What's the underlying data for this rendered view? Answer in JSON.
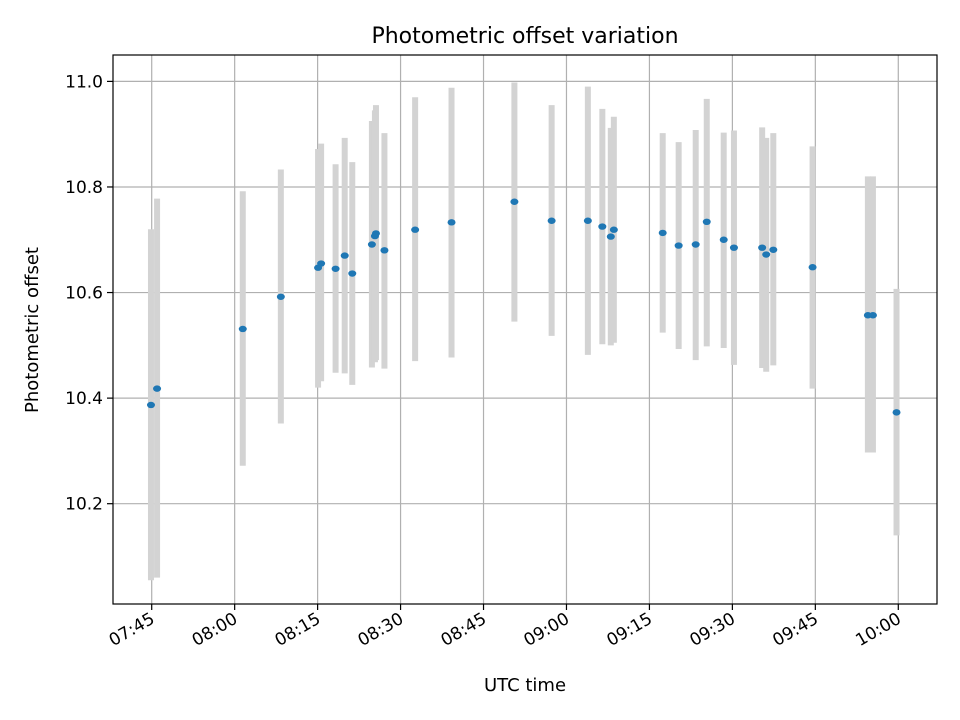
{
  "chart_data": {
    "type": "scatter",
    "title": "Photometric offset variation",
    "xlabel": "UTC time",
    "ylabel": "Photometric offset",
    "x_unit": "UTC time (HH:MM)",
    "xlim": [
      "07:38",
      "10:07"
    ],
    "ylim": [
      10.01,
      11.05
    ],
    "xticks": [
      "07:45",
      "08:00",
      "08:15",
      "08:30",
      "08:45",
      "09:00",
      "09:15",
      "09:30",
      "09:45",
      "10:00"
    ],
    "yticks": [
      10.2,
      10.4,
      10.6,
      10.8,
      11.0
    ],
    "ytick_labels": [
      "10.2",
      "10.4",
      "10.6",
      "10.8",
      "11.0"
    ],
    "grid": true,
    "point_color": "#1f77b4",
    "errorbar_color": "#d3d3d3",
    "points": [
      {
        "t": "07:44:52",
        "y": 10.387,
        "ylo": 10.055,
        "yhi": 10.72
      },
      {
        "t": "07:45:58",
        "y": 10.418,
        "ylo": 10.06,
        "yhi": 10.778
      },
      {
        "t": "08:01:28",
        "y": 10.531,
        "ylo": 10.272,
        "yhi": 10.792
      },
      {
        "t": "08:08:21",
        "y": 10.592,
        "ylo": 10.352,
        "yhi": 10.833
      },
      {
        "t": "08:15:05",
        "y": 10.647,
        "ylo": 10.42,
        "yhi": 10.872
      },
      {
        "t": "08:15:38",
        "y": 10.655,
        "ylo": 10.432,
        "yhi": 10.882
      },
      {
        "t": "08:18:15",
        "y": 10.645,
        "ylo": 10.448,
        "yhi": 10.843
      },
      {
        "t": "08:19:54",
        "y": 10.67,
        "ylo": 10.447,
        "yhi": 10.893
      },
      {
        "t": "08:21:16",
        "y": 10.636,
        "ylo": 10.425,
        "yhi": 10.847
      },
      {
        "t": "08:24:49",
        "y": 10.691,
        "ylo": 10.458,
        "yhi": 10.925
      },
      {
        "t": "08:25:22",
        "y": 10.707,
        "ylo": 10.468,
        "yhi": 10.945
      },
      {
        "t": "08:25:33",
        "y": 10.712,
        "ylo": 10.472,
        "yhi": 10.955
      },
      {
        "t": "08:27:05",
        "y": 10.68,
        "ylo": 10.456,
        "yhi": 10.902
      },
      {
        "t": "08:32:38",
        "y": 10.719,
        "ylo": 10.47,
        "yhi": 10.97
      },
      {
        "t": "08:39:13",
        "y": 10.733,
        "ylo": 10.477,
        "yhi": 10.988
      },
      {
        "t": "08:50:35",
        "y": 10.772,
        "ylo": 10.545,
        "yhi": 10.998
      },
      {
        "t": "08:57:19",
        "y": 10.736,
        "ylo": 10.518,
        "yhi": 10.955
      },
      {
        "t": "09:03:52",
        "y": 10.736,
        "ylo": 10.482,
        "yhi": 10.99
      },
      {
        "t": "09:06:29",
        "y": 10.725,
        "ylo": 10.502,
        "yhi": 10.948
      },
      {
        "t": "09:08:01",
        "y": 10.706,
        "ylo": 10.5,
        "yhi": 10.912
      },
      {
        "t": "09:08:34",
        "y": 10.719,
        "ylo": 10.505,
        "yhi": 10.933
      },
      {
        "t": "09:17:24",
        "y": 10.713,
        "ylo": 10.524,
        "yhi": 10.902
      },
      {
        "t": "09:20:17",
        "y": 10.689,
        "ylo": 10.493,
        "yhi": 10.885
      },
      {
        "t": "09:23:22",
        "y": 10.691,
        "ylo": 10.472,
        "yhi": 10.908
      },
      {
        "t": "09:25:22",
        "y": 10.734,
        "ylo": 10.498,
        "yhi": 10.967
      },
      {
        "t": "09:28:26",
        "y": 10.7,
        "ylo": 10.495,
        "yhi": 10.903
      },
      {
        "t": "09:30:17",
        "y": 10.685,
        "ylo": 10.463,
        "yhi": 10.907
      },
      {
        "t": "09:35:23",
        "y": 10.685,
        "ylo": 10.457,
        "yhi": 10.913
      },
      {
        "t": "09:36:07",
        "y": 10.672,
        "ylo": 10.45,
        "yhi": 10.893
      },
      {
        "t": "09:37:24",
        "y": 10.681,
        "ylo": 10.462,
        "yhi": 10.902
      },
      {
        "t": "09:44:30",
        "y": 10.648,
        "ylo": 10.418,
        "yhi": 10.877
      },
      {
        "t": "09:54:30",
        "y": 10.557,
        "ylo": 10.297,
        "yhi": 10.82
      },
      {
        "t": "09:55:25",
        "y": 10.557,
        "ylo": 10.297,
        "yhi": 10.82
      },
      {
        "t": "09:59:41",
        "y": 10.373,
        "ylo": 10.14,
        "yhi": 10.607
      }
    ]
  }
}
